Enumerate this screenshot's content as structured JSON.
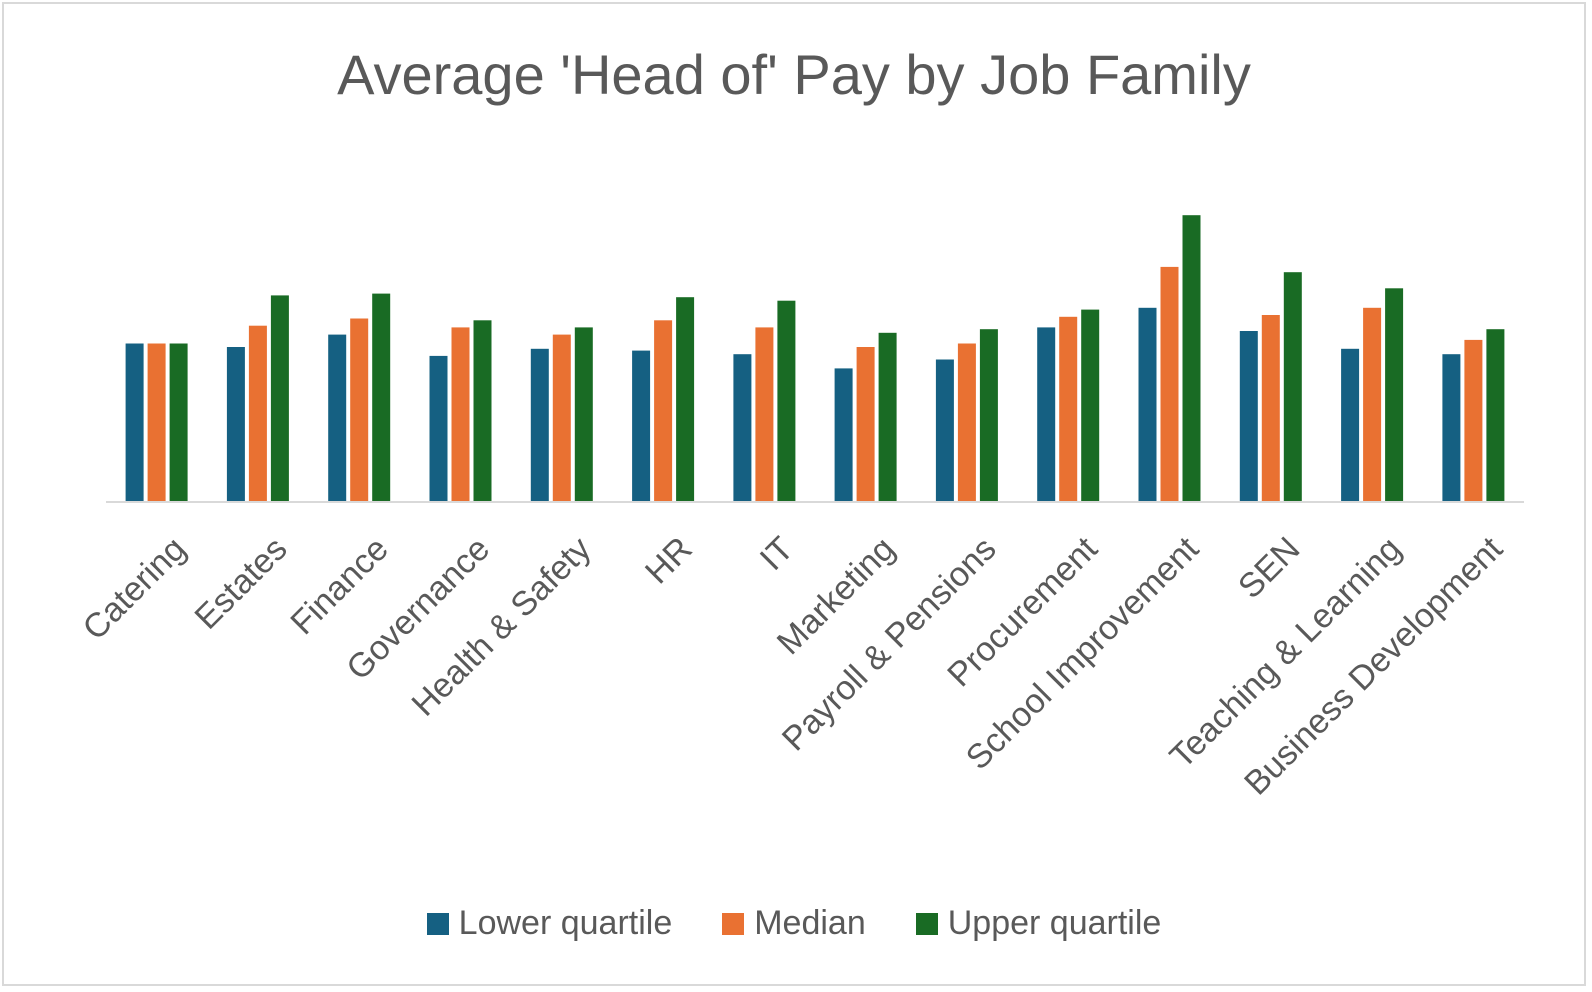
{
  "chart_data": {
    "type": "bar",
    "title": "Average 'Head of' Pay by Job Family",
    "xlabel": "",
    "ylabel": "",
    "ylim": [
      0,
      80
    ],
    "grid": false,
    "legend_position": "bottom",
    "categories": [
      "Catering",
      "Estates",
      "Finance",
      "Governance",
      "Health & Safety",
      "HR",
      "IT",
      "Marketing",
      "Payroll & Pensions",
      "Procurement",
      "School Improvement",
      "SEN",
      "Teaching & Learning",
      "Business Development"
    ],
    "series": [
      {
        "name": "Lower quartile",
        "color": "#156082",
        "values": [
          44.5,
          43.5,
          47,
          41,
          43,
          42.5,
          41.5,
          37.5,
          40,
          49,
          54.5,
          48,
          43,
          41.5
        ]
      },
      {
        "name": "Median",
        "color": "#e97132",
        "values": [
          44.5,
          49.5,
          51.5,
          49,
          47,
          51,
          49,
          43.5,
          44.5,
          52,
          66,
          52.5,
          54.5,
          45.5
        ]
      },
      {
        "name": "Upper quartile",
        "color": "#196b24",
        "values": [
          44.5,
          58,
          58.5,
          51,
          49,
          57.5,
          56.5,
          47.5,
          48.5,
          54,
          80.5,
          64.5,
          60,
          48.5
        ]
      }
    ]
  }
}
